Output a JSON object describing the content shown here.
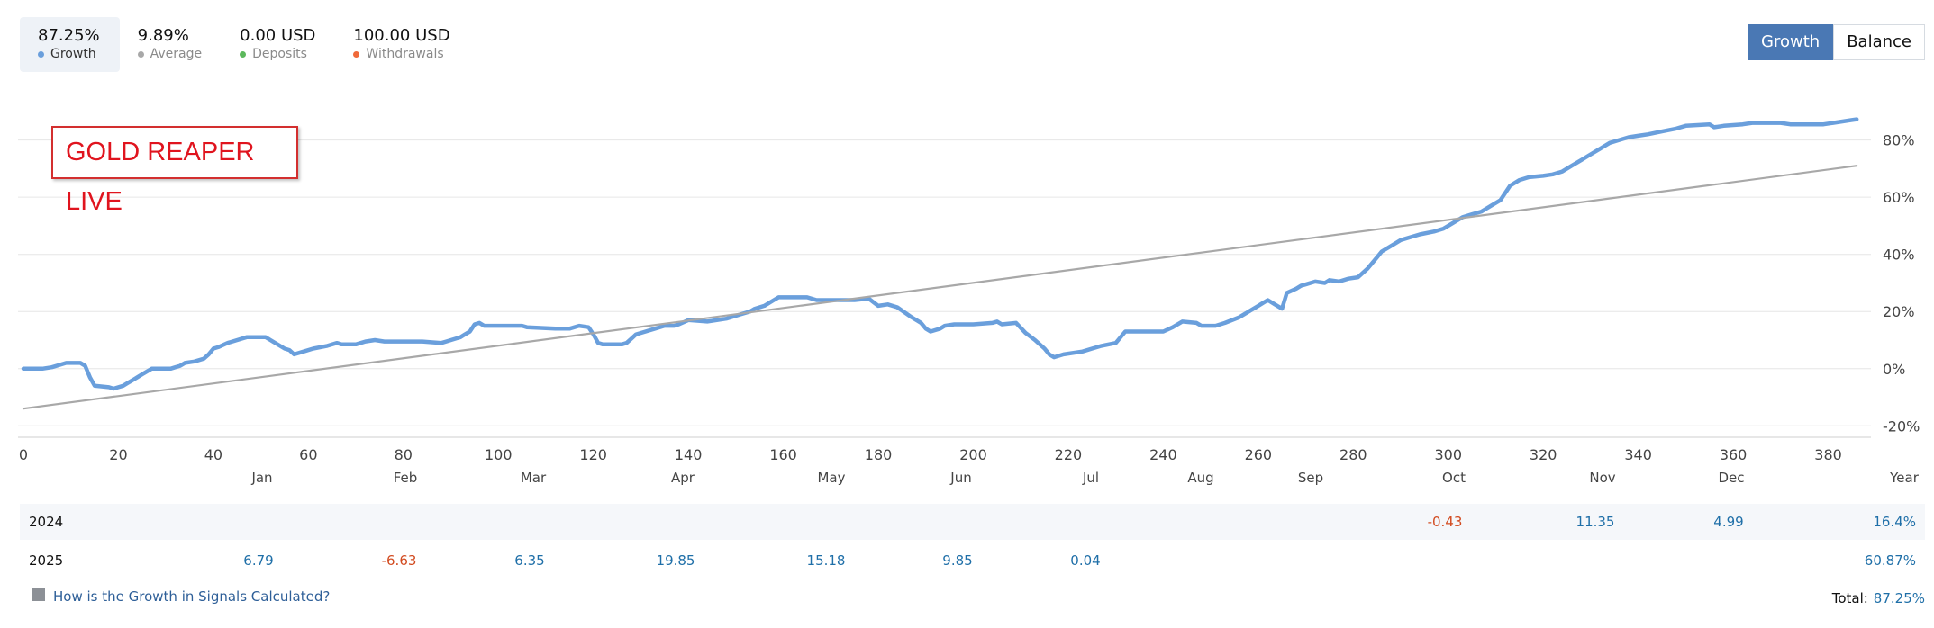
{
  "stats": [
    {
      "value": "87.25%",
      "label": "Growth",
      "color": "#6a9fdc",
      "active": true
    },
    {
      "value": "9.89%",
      "label": "Average",
      "color": "#a8a8a8",
      "active": false
    },
    {
      "value": "0.00 USD",
      "label": "Deposits",
      "color": "#5cb85c",
      "active": false
    },
    {
      "value": "100.00 USD",
      "label": "Withdrawals",
      "color": "#f06a3a",
      "active": false
    }
  ],
  "toggle": {
    "growth": "Growth",
    "balance": "Balance"
  },
  "signal_name": "GOLD REAPER LIVE",
  "chart_data": {
    "type": "line",
    "x_ticks": [
      0,
      20,
      40,
      60,
      80,
      100,
      120,
      140,
      160,
      180,
      200,
      220,
      240,
      260,
      280,
      300,
      320,
      340,
      360,
      380
    ],
    "y_ticks": [
      "80%",
      "60%",
      "40%",
      "20%",
      "0%",
      "-20%"
    ],
    "y_tick_values": [
      80,
      60,
      40,
      20,
      0,
      -20
    ],
    "xlim": [
      0,
      389
    ],
    "ylim": [
      -24,
      95
    ],
    "series": [
      {
        "name": "Growth",
        "color": "#6a9fdc",
        "points": [
          [
            0,
            0
          ],
          [
            4,
            0
          ],
          [
            6,
            0.5
          ],
          [
            8,
            1.5
          ],
          [
            9,
            2
          ],
          [
            12,
            2
          ],
          [
            13,
            1
          ],
          [
            14,
            -3
          ],
          [
            15,
            -6
          ],
          [
            18,
            -6.5
          ],
          [
            19,
            -7
          ],
          [
            20,
            -6.5
          ],
          [
            21,
            -6
          ],
          [
            22,
            -5
          ],
          [
            23,
            -4
          ],
          [
            24,
            -3
          ],
          [
            25,
            -2
          ],
          [
            26,
            -1
          ],
          [
            27,
            0
          ],
          [
            28,
            0
          ],
          [
            31,
            0
          ],
          [
            32,
            0.5
          ],
          [
            33,
            1
          ],
          [
            34,
            2
          ],
          [
            36,
            2.5
          ],
          [
            38,
            3.5
          ],
          [
            39,
            5
          ],
          [
            40,
            7
          ],
          [
            41,
            7.5
          ],
          [
            43,
            9
          ],
          [
            45,
            10
          ],
          [
            47,
            11
          ],
          [
            51,
            11
          ],
          [
            52,
            10
          ],
          [
            55,
            7
          ],
          [
            56,
            6.5
          ],
          [
            57,
            5
          ],
          [
            59,
            6
          ],
          [
            61,
            7
          ],
          [
            64,
            8
          ],
          [
            66,
            9
          ],
          [
            67,
            8.5
          ],
          [
            70,
            8.5
          ],
          [
            72,
            9.5
          ],
          [
            74,
            10
          ],
          [
            76,
            9.5
          ],
          [
            82,
            9.5
          ],
          [
            84,
            9.5
          ],
          [
            88,
            9
          ],
          [
            89,
            9.5
          ],
          [
            92,
            11
          ],
          [
            93,
            12
          ],
          [
            94,
            13
          ],
          [
            95,
            15.5
          ],
          [
            96,
            16
          ],
          [
            97,
            15
          ],
          [
            102,
            15
          ],
          [
            105,
            15
          ],
          [
            106,
            14.5
          ],
          [
            112,
            14
          ],
          [
            115,
            14
          ],
          [
            117,
            15
          ],
          [
            119,
            14.5
          ],
          [
            120,
            12
          ],
          [
            121,
            9
          ],
          [
            122,
            8.5
          ],
          [
            124,
            8.5
          ],
          [
            126,
            8.5
          ],
          [
            127,
            9
          ],
          [
            128,
            10.5
          ],
          [
            129,
            12
          ],
          [
            131,
            13
          ],
          [
            133,
            14
          ],
          [
            135,
            15
          ],
          [
            137,
            15
          ],
          [
            138,
            15.5
          ],
          [
            140,
            17
          ],
          [
            144,
            16.5
          ],
          [
            146,
            17
          ],
          [
            148,
            17.5
          ],
          [
            149,
            18
          ],
          [
            151,
            19
          ],
          [
            153,
            20
          ],
          [
            154,
            21
          ],
          [
            156,
            22
          ],
          [
            158,
            24
          ],
          [
            159,
            25
          ],
          [
            161,
            25
          ],
          [
            165,
            25
          ],
          [
            167,
            24
          ],
          [
            175,
            24
          ],
          [
            178,
            24.5
          ],
          [
            180,
            22
          ],
          [
            182,
            22.5
          ],
          [
            184,
            21.5
          ],
          [
            187,
            18
          ],
          [
            189,
            16
          ],
          [
            190,
            14
          ],
          [
            191,
            13
          ],
          [
            193,
            14
          ],
          [
            194,
            15
          ],
          [
            196,
            15.5
          ],
          [
            200,
            15.5
          ],
          [
            204,
            16
          ],
          [
            205,
            16.5
          ],
          [
            206,
            15.5
          ],
          [
            209,
            16
          ],
          [
            211,
            12.5
          ],
          [
            213,
            10
          ],
          [
            215,
            7
          ],
          [
            216,
            5
          ],
          [
            217,
            4
          ],
          [
            219,
            5
          ],
          [
            223,
            6
          ],
          [
            225,
            7
          ],
          [
            227,
            8
          ],
          [
            230,
            9
          ],
          [
            232,
            13
          ],
          [
            234,
            13
          ],
          [
            240,
            13
          ],
          [
            242,
            14.5
          ],
          [
            244,
            16.5
          ],
          [
            247,
            16
          ],
          [
            248,
            15
          ],
          [
            251,
            15
          ],
          [
            253,
            16
          ],
          [
            256,
            18
          ],
          [
            259,
            21
          ],
          [
            261,
            23
          ],
          [
            262,
            24
          ],
          [
            264,
            22
          ],
          [
            265,
            21
          ],
          [
            266,
            26.5
          ],
          [
            268,
            28
          ],
          [
            269,
            29
          ],
          [
            270,
            29.5
          ],
          [
            272,
            30.5
          ],
          [
            274,
            30
          ],
          [
            275,
            31
          ],
          [
            277,
            30.5
          ],
          [
            279,
            31.5
          ],
          [
            281,
            32
          ],
          [
            283,
            35
          ],
          [
            285,
            39
          ],
          [
            286,
            41
          ],
          [
            288,
            43
          ],
          [
            290,
            45
          ],
          [
            292,
            46
          ],
          [
            294,
            47
          ],
          [
            297,
            48
          ],
          [
            299,
            49
          ],
          [
            301,
            51
          ],
          [
            303,
            53
          ],
          [
            305,
            54
          ],
          [
            307,
            55
          ],
          [
            309,
            57
          ],
          [
            311,
            59
          ],
          [
            313,
            64
          ],
          [
            315,
            66
          ],
          [
            317,
            67
          ],
          [
            320,
            67.5
          ],
          [
            322,
            68
          ],
          [
            324,
            69
          ],
          [
            326,
            71
          ],
          [
            328,
            73
          ],
          [
            330,
            75
          ],
          [
            332,
            77
          ],
          [
            334,
            79
          ],
          [
            336,
            80
          ],
          [
            338,
            81
          ],
          [
            340,
            81.5
          ],
          [
            342,
            82
          ],
          [
            345,
            83
          ],
          [
            348,
            84
          ],
          [
            350,
            85
          ],
          [
            355,
            85.5
          ],
          [
            356,
            84.5
          ],
          [
            358,
            85
          ],
          [
            362,
            85.5
          ],
          [
            364,
            86
          ],
          [
            370,
            86
          ],
          [
            372,
            85.5
          ],
          [
            375,
            85.5
          ],
          [
            379,
            85.5
          ],
          [
            381,
            86
          ],
          [
            383,
            86.5
          ],
          [
            385,
            87
          ],
          [
            386,
            87.25
          ]
        ]
      },
      {
        "name": "Average",
        "color": "#a8a8a8",
        "points": [
          [
            0,
            -14
          ],
          [
            386,
            71
          ]
        ]
      }
    ]
  },
  "months": [
    "Jan",
    "Feb",
    "Mar",
    "Apr",
    "May",
    "Jun",
    "Jul",
    "Aug",
    "Sep",
    "Oct",
    "Nov",
    "Dec",
    "Year"
  ],
  "table": [
    {
      "year": "2024",
      "values": [
        "",
        "",
        "",
        "",
        "",
        "",
        "",
        "",
        "",
        "-0.43",
        "11.35",
        "4.99"
      ],
      "total": "16.4%"
    },
    {
      "year": "2025",
      "values": [
        "6.79",
        "-6.63",
        "6.35",
        "19.85",
        "15.18",
        "9.85",
        "0.04",
        "",
        "",
        "",
        "",
        ""
      ],
      "total": "60.87%"
    }
  ],
  "footer_link": "How is the Growth in Signals Calculated?",
  "total_label": "Total:",
  "total_value": "87.25%"
}
